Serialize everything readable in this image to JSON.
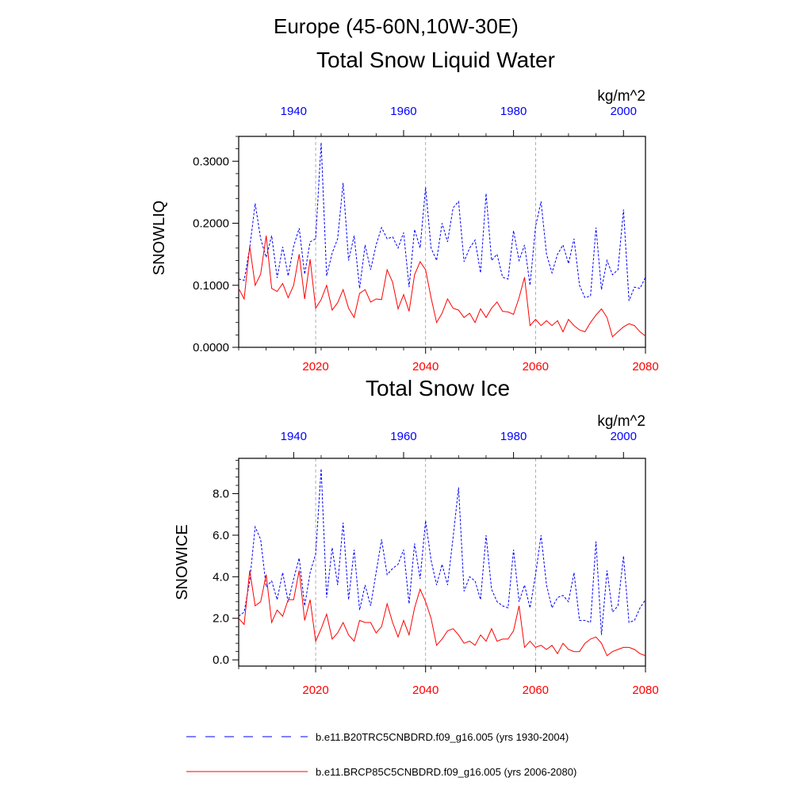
{
  "header": {
    "region": "Europe (45-60N,10W-30E)",
    "top_panel_title": "Total Snow Liquid Water",
    "bottom_panel_title": "Total Snow Ice"
  },
  "colors": {
    "historical": "#0000ff",
    "future": "#ff0000",
    "axis": "#000000",
    "gridline": "#999999"
  },
  "legend": {
    "historical_label": "b.e11.B20TRC5CNBDRD.f09_g16.005 (yrs 1930-2004)",
    "future_label": "b.e11.BRCP85C5CNBDRD.f09_g16.005 (yrs 2006-2080)"
  },
  "chart_data": [
    {
      "type": "line",
      "title": "Total Snow Liquid Water",
      "ylabel": "SNOWLIQ",
      "units": "kg/m^2",
      "ylim": [
        0,
        0.34
      ],
      "yticks": [
        0.0,
        0.1,
        0.2,
        0.3
      ],
      "ytick_labels": [
        "0.0000",
        "0.1000",
        "0.2000",
        "0.3000"
      ],
      "x_bottom": {
        "range": [
          2006,
          2080
        ],
        "ticks": [
          2020,
          2040,
          2060,
          2080
        ],
        "color": "red"
      },
      "x_top": {
        "range": [
          1930,
          2004
        ],
        "ticks": [
          1940,
          1960,
          1980,
          2000
        ],
        "color": "blue"
      },
      "vertical_lines_bottom_years": [
        2020,
        2040,
        2060
      ],
      "series": [
        {
          "name": "b.e11.B20TRC5CNBDRD.f09_g16.005 (yrs 1930-2004)",
          "axis": "top",
          "style": "dashed",
          "color": "blue",
          "x_start": 1930,
          "values": [
            0.11,
            0.108,
            0.16,
            0.232,
            0.175,
            0.145,
            0.18,
            0.112,
            0.162,
            0.115,
            0.163,
            0.192,
            0.118,
            0.17,
            0.175,
            0.33,
            0.115,
            0.152,
            0.175,
            0.265,
            0.14,
            0.18,
            0.095,
            0.165,
            0.125,
            0.165,
            0.193,
            0.175,
            0.178,
            0.16,
            0.185,
            0.097,
            0.19,
            0.16,
            0.258,
            0.16,
            0.14,
            0.2,
            0.17,
            0.225,
            0.235,
            0.138,
            0.16,
            0.173,
            0.12,
            0.248,
            0.14,
            0.15,
            0.113,
            0.11,
            0.188,
            0.14,
            0.165,
            0.1,
            0.195,
            0.235,
            0.15,
            0.12,
            0.15,
            0.165,
            0.135,
            0.175,
            0.1,
            0.08,
            0.083,
            0.193,
            0.093,
            0.14,
            0.117,
            0.125,
            0.222,
            0.075,
            0.097,
            0.095,
            0.113
          ]
        },
        {
          "name": "b.e11.BRCP85C5CNBDRD.f09_g16.005 (yrs 2006-2080)",
          "axis": "bottom",
          "style": "solid",
          "color": "red",
          "x_start": 2006,
          "values": [
            0.095,
            0.078,
            0.163,
            0.1,
            0.118,
            0.18,
            0.095,
            0.09,
            0.103,
            0.08,
            0.1,
            0.15,
            0.078,
            0.142,
            0.063,
            0.077,
            0.1,
            0.06,
            0.072,
            0.093,
            0.063,
            0.048,
            0.087,
            0.093,
            0.073,
            0.078,
            0.077,
            0.125,
            0.105,
            0.062,
            0.085,
            0.058,
            0.117,
            0.138,
            0.125,
            0.08,
            0.04,
            0.055,
            0.078,
            0.063,
            0.06,
            0.048,
            0.055,
            0.04,
            0.062,
            0.048,
            0.063,
            0.073,
            0.058,
            0.057,
            0.053,
            0.08,
            0.113,
            0.035,
            0.045,
            0.035,
            0.043,
            0.035,
            0.043,
            0.025,
            0.045,
            0.035,
            0.028,
            0.025,
            0.04,
            0.052,
            0.062,
            0.048,
            0.017,
            0.025,
            0.033,
            0.038,
            0.035,
            0.025,
            0.018
          ]
        }
      ]
    },
    {
      "type": "line",
      "title": "Total Snow Ice",
      "ylabel": "SNOWICE",
      "units": "kg/m^2",
      "ylim": [
        -0.3,
        9.7
      ],
      "yticks": [
        0.0,
        2.0,
        4.0,
        6.0,
        8.0
      ],
      "ytick_labels": [
        "0.0",
        "2.0",
        "4.0",
        "6.0",
        "8.0"
      ],
      "x_bottom": {
        "range": [
          2006,
          2080
        ],
        "ticks": [
          2020,
          2040,
          2060,
          2080
        ],
        "color": "red"
      },
      "x_top": {
        "range": [
          1930,
          2004
        ],
        "ticks": [
          1940,
          1960,
          1980,
          2000
        ],
        "color": "blue"
      },
      "vertical_lines_bottom_years": [
        2020,
        2040,
        2060
      ],
      "series": [
        {
          "name": "b.e11.B20TRC5CNBDRD.f09_g16.005 (yrs 1930-2004)",
          "axis": "top",
          "style": "dashed",
          "color": "blue",
          "x_start": 1930,
          "values": [
            2.1,
            2.3,
            3.8,
            6.4,
            5.8,
            3.5,
            3.8,
            2.9,
            4.2,
            2.8,
            3.9,
            4.9,
            2.6,
            4.2,
            5.1,
            9.2,
            3.0,
            5.4,
            3.6,
            6.6,
            2.9,
            5.3,
            2.4,
            3.6,
            2.6,
            4.2,
            5.8,
            4.1,
            4.4,
            4.6,
            5.3,
            2.7,
            5.6,
            3.9,
            6.7,
            4.8,
            3.6,
            4.6,
            3.6,
            5.9,
            8.3,
            3.3,
            4.0,
            3.8,
            2.9,
            6.0,
            3.4,
            2.8,
            2.6,
            2.5,
            5.3,
            2.8,
            3.6,
            2.5,
            4.1,
            6.0,
            3.6,
            2.5,
            3.0,
            3.1,
            2.8,
            4.2,
            1.9,
            1.9,
            1.8,
            5.7,
            1.2,
            4.3,
            2.3,
            2.6,
            5.0,
            1.8,
            1.9,
            2.5,
            2.9
          ]
        },
        {
          "name": "b.e11.BRCP85C5CNBDRD.f09_g16.005 (yrs 2006-2080)",
          "axis": "bottom",
          "style": "solid",
          "color": "red",
          "x_start": 2006,
          "values": [
            2.0,
            1.7,
            4.3,
            2.6,
            2.8,
            4.1,
            1.8,
            2.4,
            2.1,
            2.9,
            2.9,
            4.3,
            1.9,
            2.9,
            0.9,
            1.5,
            2.2,
            1.0,
            1.3,
            1.8,
            1.2,
            0.9,
            1.9,
            1.8,
            1.8,
            1.3,
            1.6,
            2.7,
            1.8,
            1.1,
            1.9,
            1.2,
            2.5,
            3.4,
            2.8,
            2.0,
            0.7,
            1.0,
            1.4,
            1.5,
            1.2,
            0.8,
            0.9,
            0.7,
            1.2,
            0.9,
            1.5,
            0.9,
            1.0,
            1.0,
            1.4,
            2.6,
            0.6,
            0.9,
            0.6,
            0.7,
            0.5,
            0.7,
            0.3,
            0.8,
            0.5,
            0.4,
            0.4,
            0.8,
            1.0,
            1.1,
            0.8,
            0.2,
            0.4,
            0.5,
            0.6,
            0.6,
            0.5,
            0.3,
            0.2
          ]
        }
      ]
    }
  ]
}
